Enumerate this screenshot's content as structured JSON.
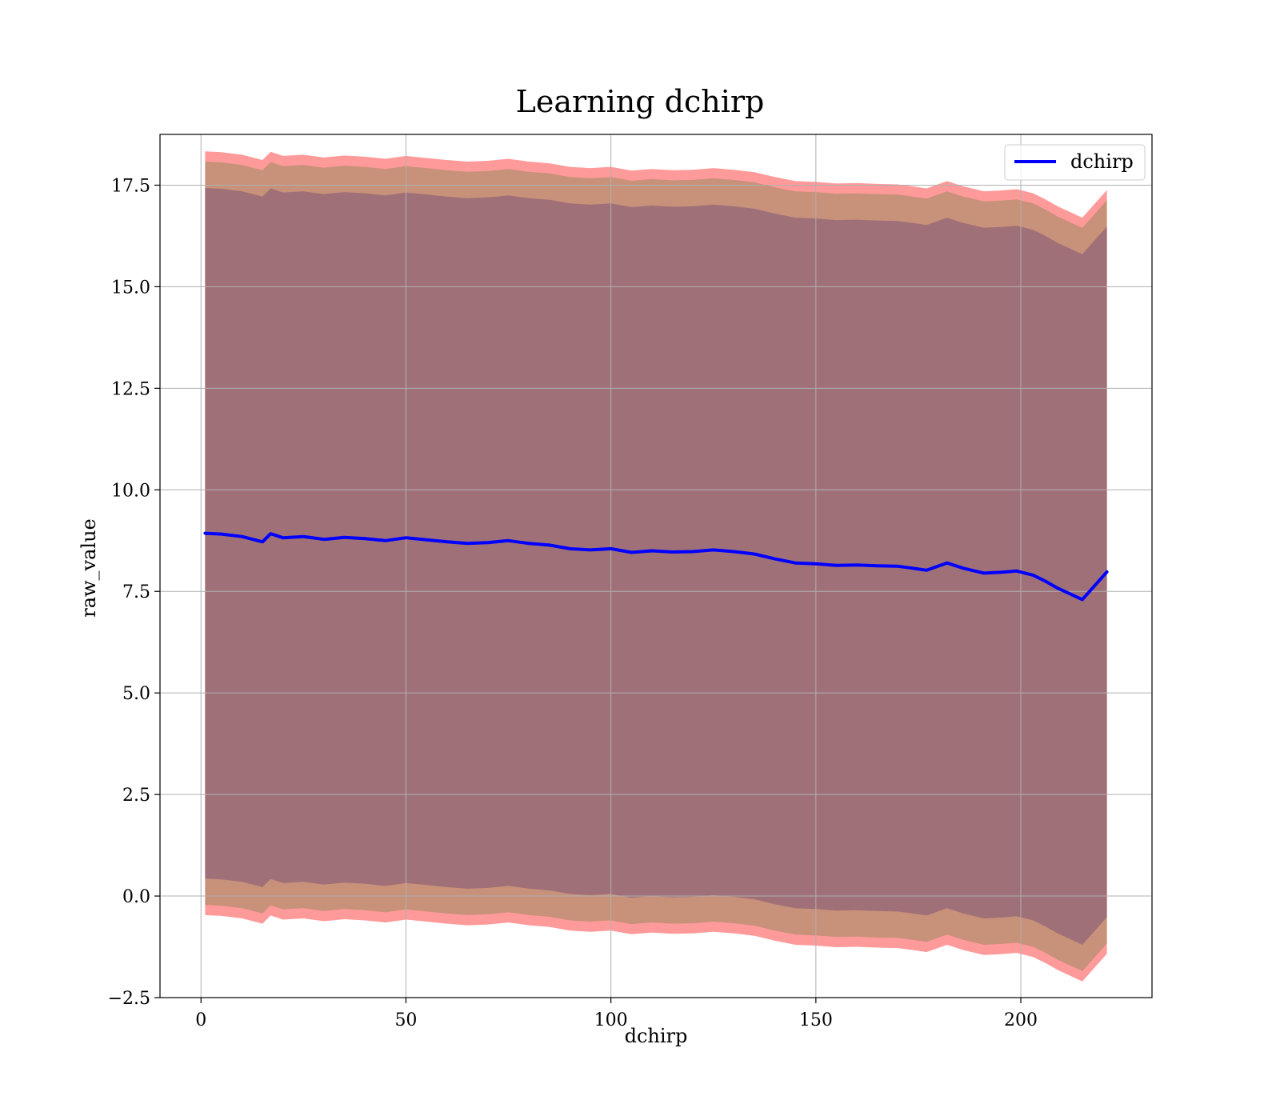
{
  "chart_data": {
    "type": "line",
    "title": "Learning dchirp",
    "xlabel": "dchirp",
    "ylabel": "raw_value",
    "xlim": [
      -10,
      232
    ],
    "ylim": [
      -2.5,
      18.75
    ],
    "x_ticks": [
      0,
      50,
      100,
      150,
      200
    ],
    "x_tick_labels": [
      "0",
      "50",
      "100",
      "150",
      "200"
    ],
    "y_ticks": [
      -2.5,
      0.0,
      2.5,
      5.0,
      7.5,
      10.0,
      12.5,
      15.0,
      17.5
    ],
    "y_tick_labels": [
      "−2.5",
      "0.0",
      "2.5",
      "5.0",
      "7.5",
      "10.0",
      "12.5",
      "15.0",
      "17.5"
    ],
    "grid": true,
    "legend": {
      "position": "top-right",
      "entries": [
        "dchirp"
      ]
    },
    "colors": {
      "line": "#0000ff",
      "band_outer": "#ff9a9a",
      "band_middle": "#c8917a",
      "band_inner": "#a07078",
      "grid": "#b0b0b0"
    },
    "series": [
      {
        "name": "dchirp",
        "x": [
          1,
          5,
          10,
          15,
          17,
          20,
          25,
          30,
          35,
          40,
          45,
          50,
          55,
          60,
          65,
          70,
          75,
          80,
          85,
          90,
          95,
          100,
          105,
          110,
          115,
          120,
          125,
          130,
          135,
          140,
          145,
          150,
          155,
          160,
          165,
          170,
          173,
          177,
          182,
          186,
          191,
          195,
          199,
          203,
          206,
          209,
          215,
          221
        ],
        "y": [
          8.93,
          8.91,
          8.85,
          8.72,
          8.92,
          8.82,
          8.85,
          8.78,
          8.83,
          8.8,
          8.75,
          8.82,
          8.77,
          8.72,
          8.68,
          8.7,
          8.75,
          8.68,
          8.64,
          8.55,
          8.52,
          8.55,
          8.46,
          8.5,
          8.47,
          8.48,
          8.52,
          8.48,
          8.42,
          8.3,
          8.2,
          8.18,
          8.14,
          8.15,
          8.13,
          8.12,
          8.08,
          8.02,
          8.2,
          8.07,
          7.95,
          7.97,
          8.0,
          7.9,
          7.75,
          7.58,
          7.3,
          7.98
        ]
      }
    ],
    "bands": [
      {
        "style": "outer",
        "half_width": 9.4
      },
      {
        "style": "middle",
        "half_width": 9.15
      },
      {
        "style": "inner",
        "half_width": 8.5
      }
    ]
  }
}
